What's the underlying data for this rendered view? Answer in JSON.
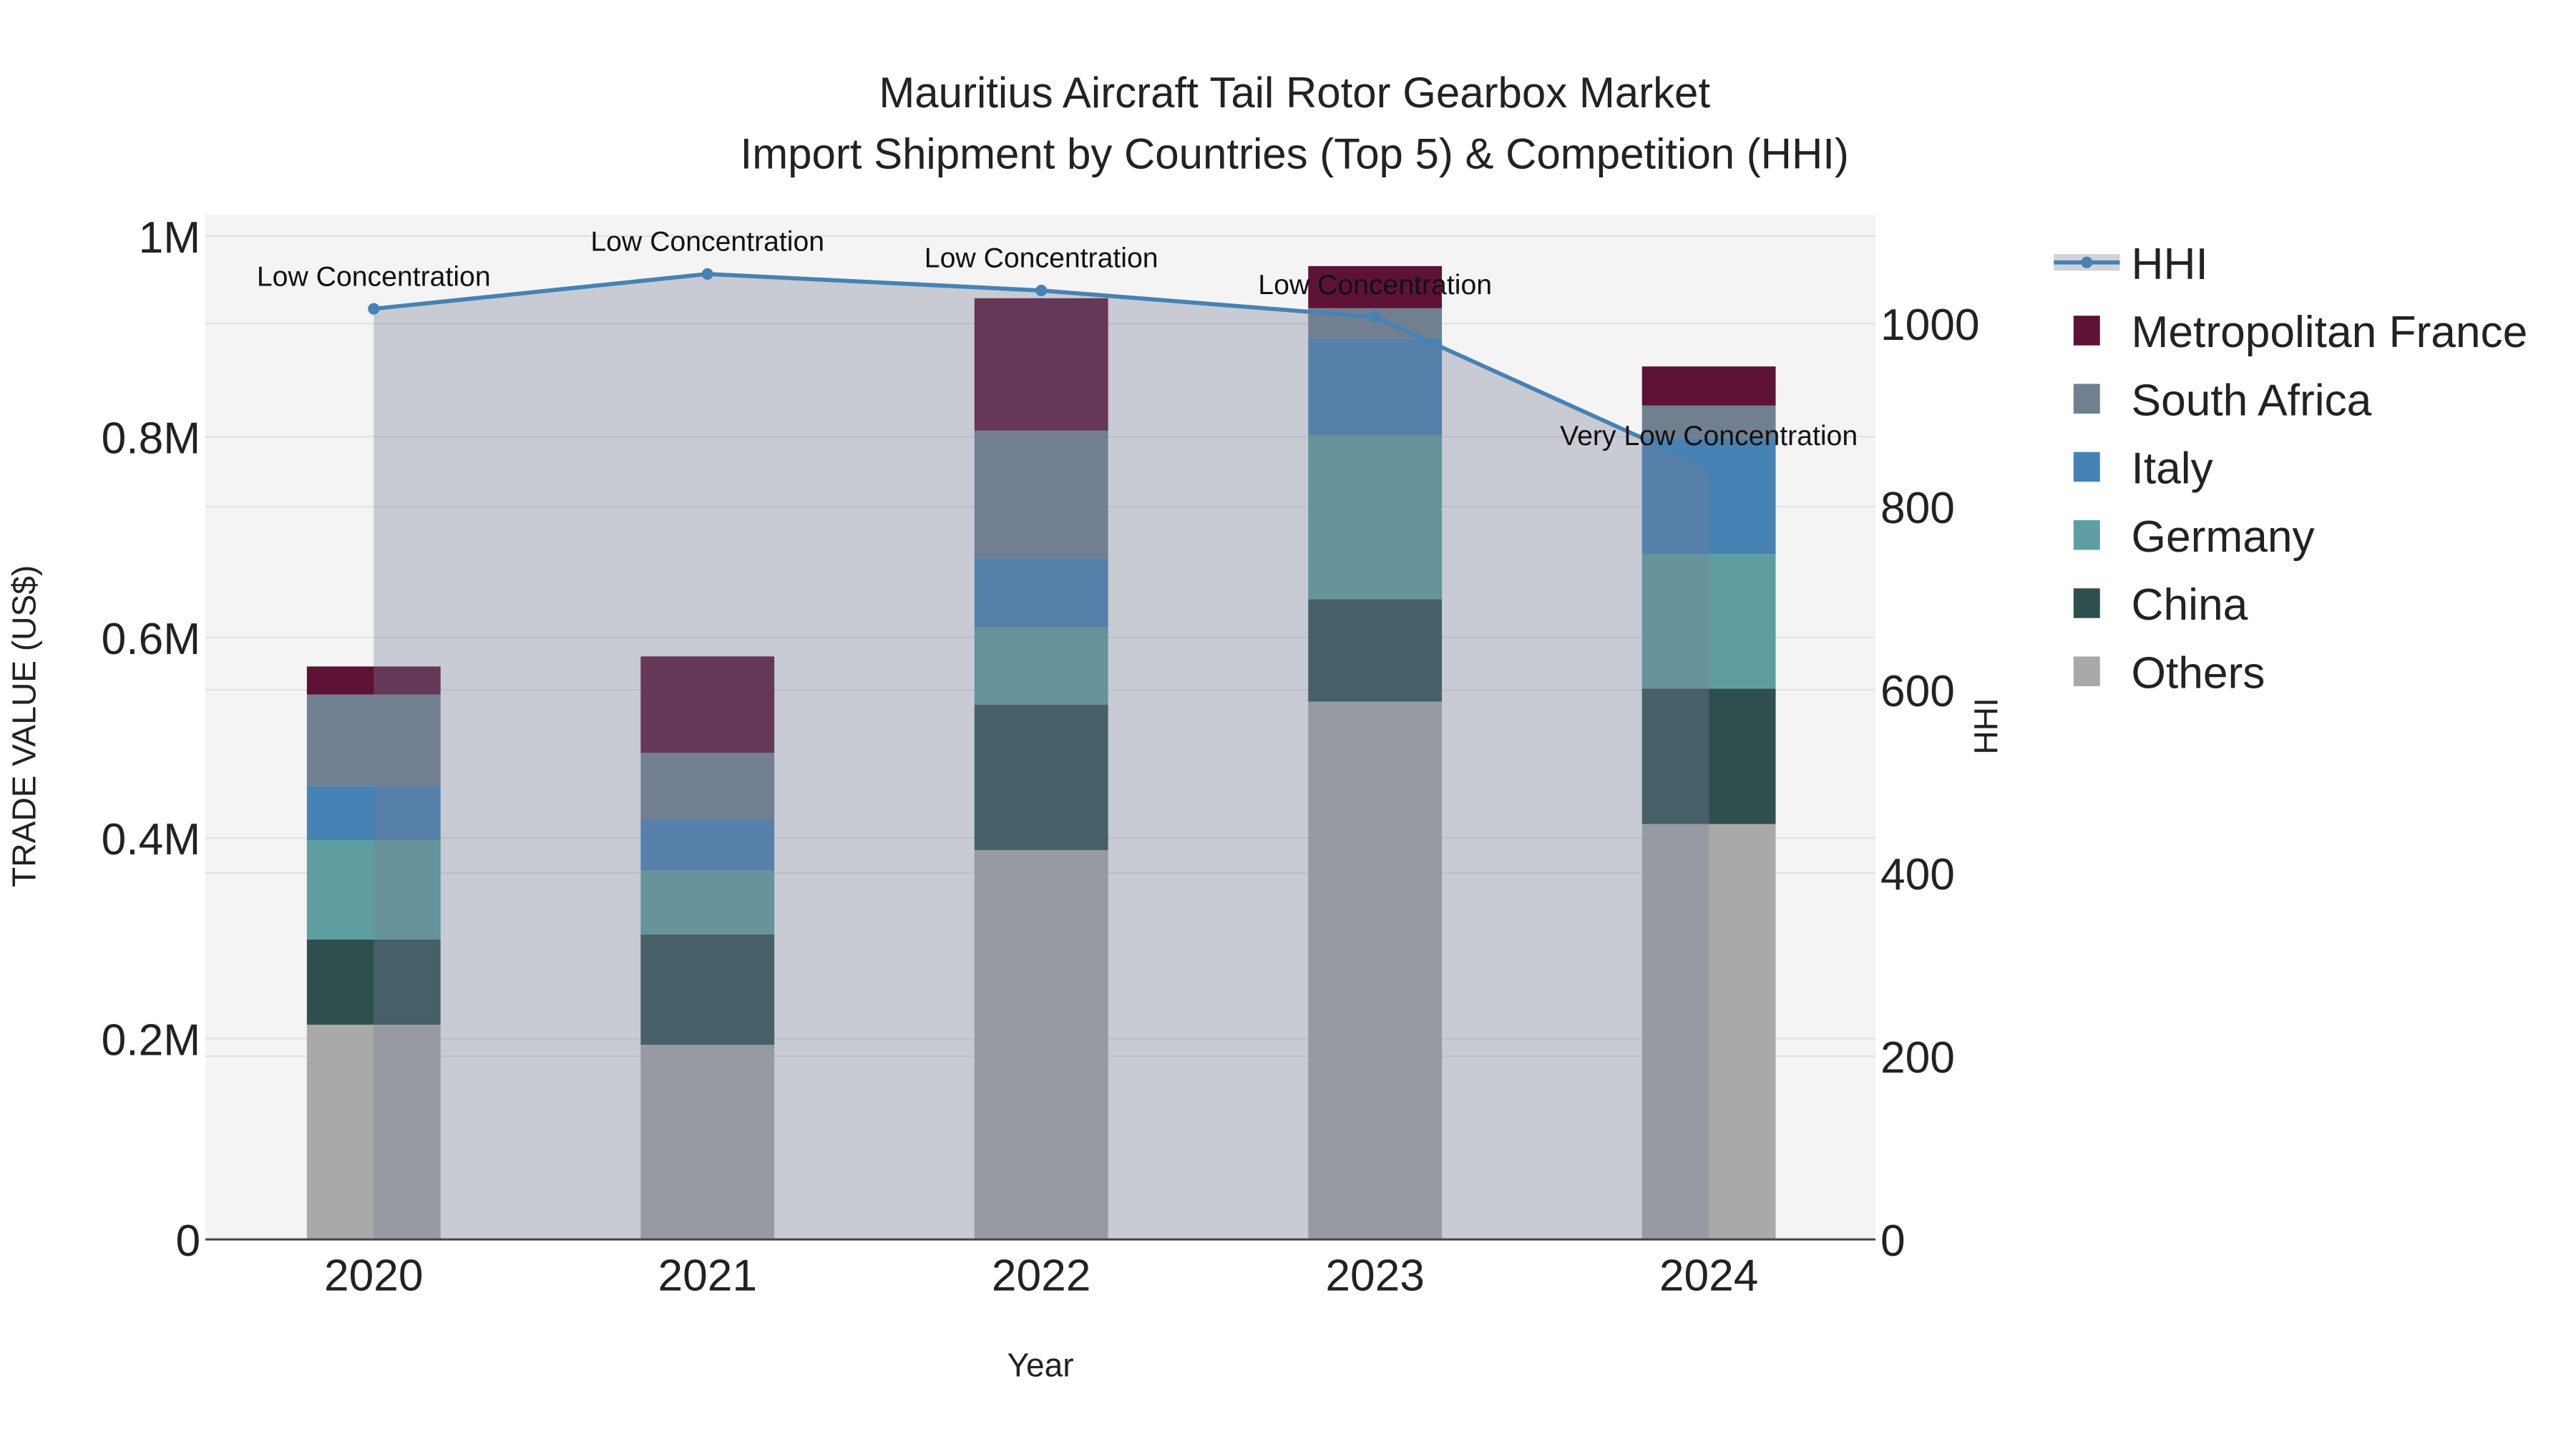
{
  "chart_data": {
    "type": "bar",
    "stacked": true,
    "title": "Mauritius Aircraft Tail Rotor Gearbox Market",
    "subtitle": "Import Shipment by Countries (Top 5) & Competition (HHI)",
    "xlabel": "Year",
    "ylabel": "TRADE VALUE (US$)",
    "y2label": "HHI",
    "categories": [
      "2020",
      "2021",
      "2022",
      "2023",
      "2024"
    ],
    "ylim": [
      0,
      1000000
    ],
    "y2lim": [
      0,
      1100
    ],
    "yticks": [
      {
        "v": 0,
        "label": "0"
      },
      {
        "v": 200000,
        "label": "0.2M"
      },
      {
        "v": 400000,
        "label": "0.4M"
      },
      {
        "v": 600000,
        "label": "0.6M"
      },
      {
        "v": 800000,
        "label": "0.8M"
      },
      {
        "v": 1000000,
        "label": "1M"
      }
    ],
    "y2ticks": [
      {
        "v": 0,
        "label": "0"
      },
      {
        "v": 200,
        "label": "200"
      },
      {
        "v": 400,
        "label": "400"
      },
      {
        "v": 600,
        "label": "600"
      },
      {
        "v": 800,
        "label": "800"
      },
      {
        "v": 1000,
        "label": "1000"
      }
    ],
    "series": [
      {
        "name": "Others",
        "color": "#a9a9a9",
        "values": [
          214000,
          194000,
          388000,
          536000,
          414000
        ]
      },
      {
        "name": "China",
        "color": "#2f4f4f",
        "values": [
          85000,
          110000,
          145000,
          102000,
          135000
        ]
      },
      {
        "name": "Germany",
        "color": "#5f9ea0",
        "values": [
          99000,
          64000,
          77000,
          163000,
          134000
        ]
      },
      {
        "name": "Italy",
        "color": "#4682b4",
        "values": [
          54000,
          51000,
          69000,
          97000,
          115000
        ]
      },
      {
        "name": "South Africa",
        "color": "#708090",
        "values": [
          91000,
          66000,
          127000,
          30000,
          33000
        ]
      },
      {
        "name": "Metropolitan France",
        "color": "#5e1236",
        "values": [
          28000,
          96000,
          132000,
          42000,
          39000
        ]
      }
    ],
    "hhi": {
      "name": "HHI",
      "color": "#4682b4",
      "values": [
        1016,
        1054,
        1036,
        1007,
        842
      ]
    },
    "annotations": [
      "Low Concentration",
      "Low Concentration",
      "Low Concentration",
      "Low Concentration",
      "Very Low Concentration"
    ],
    "legend": {
      "placement": "right",
      "order": [
        "HHI",
        "Metropolitan France",
        "South Africa",
        "Italy",
        "Germany",
        "China",
        "Others"
      ]
    },
    "grid": true
  }
}
